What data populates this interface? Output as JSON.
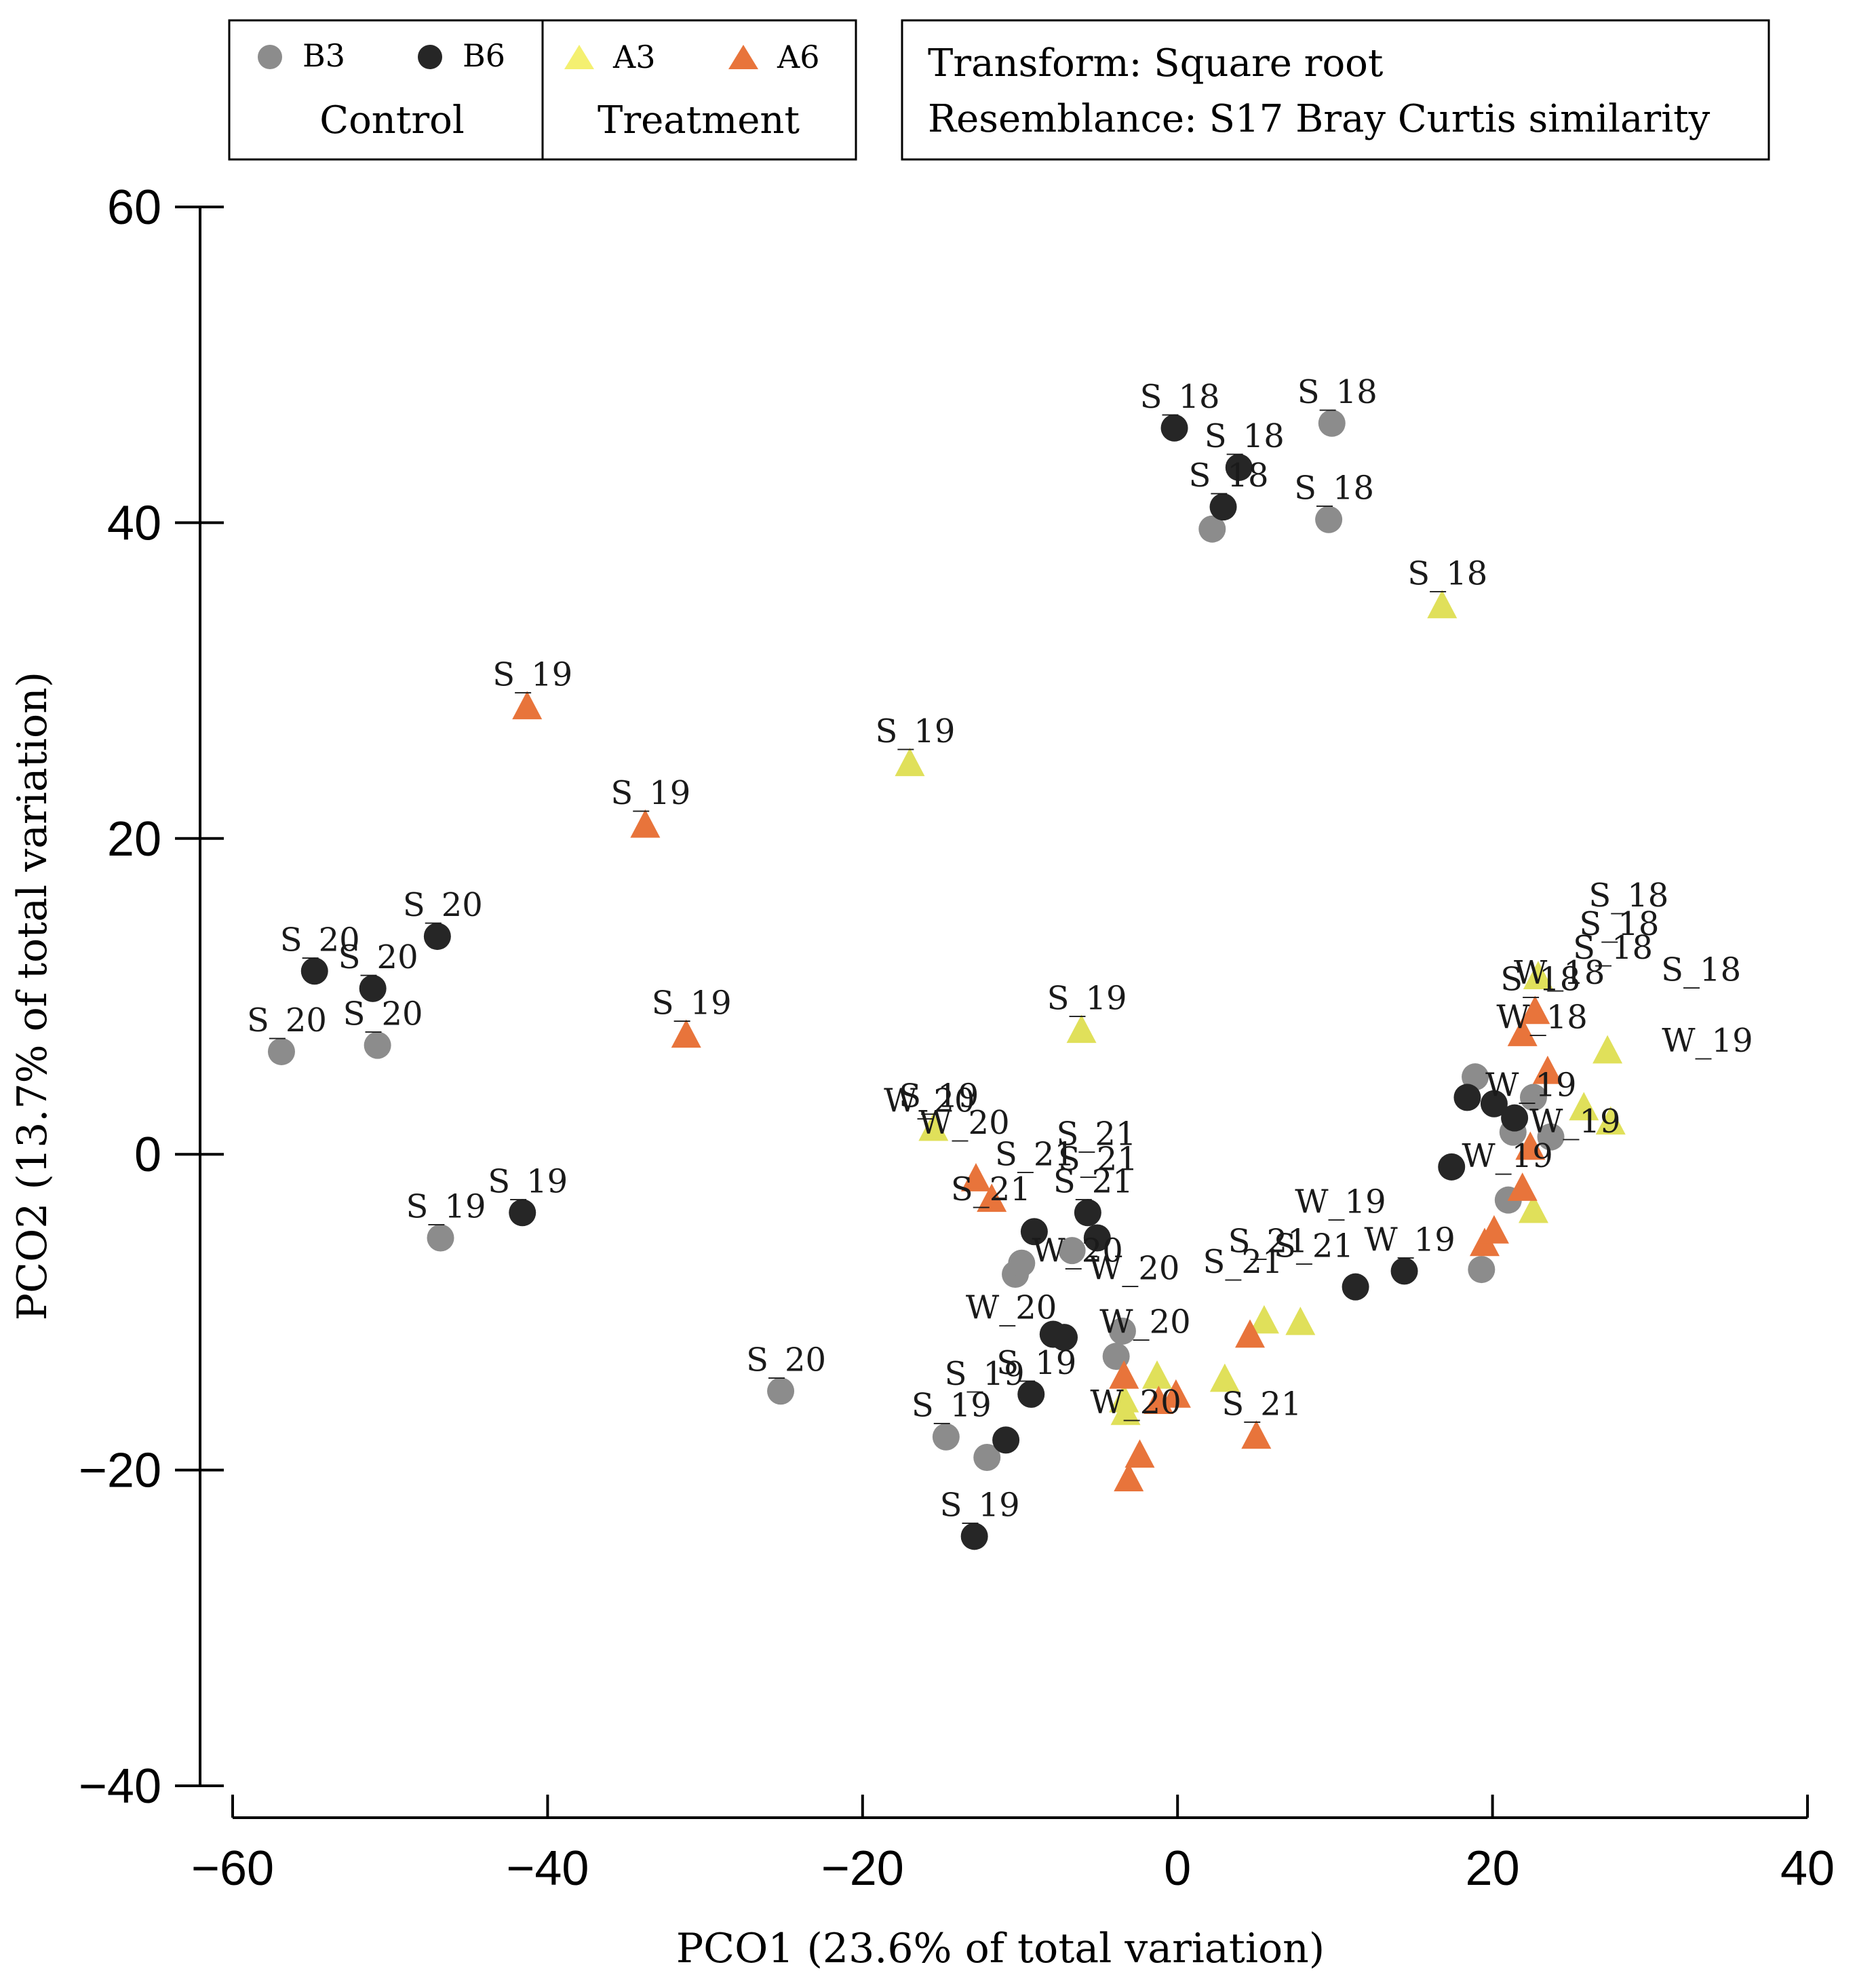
{
  "chart_data": {
    "type": "scatter",
    "xlabel": "PCO1 (23.6% of total variation)",
    "ylabel": "PCO2 (13.7% of total variation)",
    "xlim": [
      -60,
      40
    ],
    "ylim": [
      -40,
      60
    ],
    "xticks": [
      -60,
      -40,
      -20,
      0,
      20,
      40
    ],
    "yticks": [
      -40,
      -20,
      0,
      20,
      40,
      60
    ],
    "tick_labels_x": [
      "−60",
      "−40",
      "−20",
      "0",
      "20",
      "40"
    ],
    "tick_labels_y": [
      "−40",
      "−20",
      "0",
      "20",
      "40",
      "60"
    ],
    "info_box": {
      "transform": "Transform: Square root",
      "resemblance": "Resemblance: S17 Bray Curtis similarity"
    },
    "legend": {
      "placement": "top-left",
      "groups": [
        {
          "group": "Control",
          "entries": [
            "B3",
            "B6"
          ]
        },
        {
          "group": "Treatment",
          "entries": [
            "A3",
            "A6"
          ]
        }
      ]
    },
    "series": [
      {
        "name": "B3",
        "group": "Control",
        "marker": "circle",
        "color": "#8c8c8c",
        "points": [
          {
            "x": 9.8,
            "y": 46.3,
            "label": "S_18"
          },
          {
            "x": 9.6,
            "y": 40.2,
            "label": "S_18"
          },
          {
            "x": 2.2,
            "y": 39.6,
            "label": ""
          },
          {
            "x": -56.9,
            "y": 6.5,
            "label": "S_20"
          },
          {
            "x": -50.8,
            "y": 6.9,
            "label": "S_20"
          },
          {
            "x": -46.8,
            "y": -5.3,
            "label": "S_19"
          },
          {
            "x": -25.2,
            "y": -15.0,
            "label": "S_20"
          },
          {
            "x": -14.7,
            "y": -17.9,
            "label": "S_19"
          },
          {
            "x": -12.1,
            "y": -19.2,
            "label": ""
          },
          {
            "x": -10.3,
            "y": -7.6,
            "label": ""
          },
          {
            "x": -9.9,
            "y": -6.9,
            "label": ""
          },
          {
            "x": -6.7,
            "y": -6.1,
            "label": ""
          },
          {
            "x": -3.9,
            "y": -12.8,
            "label": ""
          },
          {
            "x": -3.5,
            "y": -11.2,
            "label": ""
          },
          {
            "x": 19.3,
            "y": -7.3,
            "label": ""
          },
          {
            "x": 21.0,
            "y": -2.9,
            "label": ""
          },
          {
            "x": 21.3,
            "y": 1.4,
            "label": ""
          },
          {
            "x": 23.7,
            "y": 1.1,
            "label": ""
          },
          {
            "x": 22.6,
            "y": 3.6,
            "label": ""
          },
          {
            "x": 18.9,
            "y": 4.9,
            "label": ""
          }
        ]
      },
      {
        "name": "B6",
        "group": "Control",
        "marker": "circle",
        "color": "#262626",
        "points": [
          {
            "x": -0.2,
            "y": 46.0,
            "label": "S_18"
          },
          {
            "x": 3.9,
            "y": 43.5,
            "label": "S_18"
          },
          {
            "x": 2.9,
            "y": 41.0,
            "label": "S_18"
          },
          {
            "x": -54.8,
            "y": 11.6,
            "label": "S_20"
          },
          {
            "x": -51.1,
            "y": 10.5,
            "label": "S_20"
          },
          {
            "x": -47.0,
            "y": 13.8,
            "label": "S_20"
          },
          {
            "x": -41.6,
            "y": -3.7,
            "label": "S_19"
          },
          {
            "x": -12.9,
            "y": -24.2,
            "label": "S_19"
          },
          {
            "x": -10.9,
            "y": -18.1,
            "label": ""
          },
          {
            "x": -9.3,
            "y": -15.2,
            "label": "S_19"
          },
          {
            "x": -9.1,
            "y": -4.9,
            "label": ""
          },
          {
            "x": -5.7,
            "y": -3.7,
            "label": "S_21"
          },
          {
            "x": -5.1,
            "y": -5.3,
            "label": ""
          },
          {
            "x": -7.9,
            "y": -11.4,
            "label": ""
          },
          {
            "x": -7.2,
            "y": -11.6,
            "label": ""
          },
          {
            "x": 11.3,
            "y": -8.4,
            "label": ""
          },
          {
            "x": 14.4,
            "y": -7.4,
            "label": "W_19"
          },
          {
            "x": 17.4,
            "y": -0.8,
            "label": ""
          },
          {
            "x": 18.4,
            "y": 3.6,
            "label": ""
          },
          {
            "x": 20.1,
            "y": 3.2,
            "label": ""
          },
          {
            "x": 21.4,
            "y": 2.3,
            "label": ""
          }
        ]
      },
      {
        "name": "A3",
        "group": "Treatment",
        "marker": "triangle",
        "color": "#e0e05a",
        "points": [
          {
            "x": 16.8,
            "y": 34.8,
            "label": "S_18"
          },
          {
            "x": -17.0,
            "y": 24.8,
            "label": "S_19"
          },
          {
            "x": -6.1,
            "y": 7.9,
            "label": "S_19"
          },
          {
            "x": -15.5,
            "y": 1.7,
            "label": "S_19"
          },
          {
            "x": -3.4,
            "y": -15.5,
            "label": ""
          },
          {
            "x": -3.3,
            "y": -16.3,
            "label": ""
          },
          {
            "x": -1.3,
            "y": -14.0,
            "label": ""
          },
          {
            "x": 3.0,
            "y": -14.2,
            "label": ""
          },
          {
            "x": 5.5,
            "y": -10.5,
            "label": ""
          },
          {
            "x": 7.8,
            "y": -10.6,
            "label": ""
          },
          {
            "x": 22.6,
            "y": -3.5,
            "label": ""
          },
          {
            "x": 25.8,
            "y": 3.0,
            "label": ""
          },
          {
            "x": 27.5,
            "y": 2.1,
            "label": ""
          },
          {
            "x": 27.3,
            "y": 6.6,
            "label": ""
          },
          {
            "x": 22.9,
            "y": 11.3,
            "label": ""
          }
        ]
      },
      {
        "name": "A6",
        "group": "Treatment",
        "marker": "triangle",
        "color": "#e8743b",
        "points": [
          {
            "x": -41.3,
            "y": 28.4,
            "label": "S_19"
          },
          {
            "x": -33.8,
            "y": 20.9,
            "label": "S_19"
          },
          {
            "x": -31.2,
            "y": 7.6,
            "label": "S_19"
          },
          {
            "x": -12.8,
            "y": -1.5,
            "label": ""
          },
          {
            "x": -11.8,
            "y": -2.8,
            "label": ""
          },
          {
            "x": -3.4,
            "y": -14.0,
            "label": ""
          },
          {
            "x": -1.2,
            "y": -15.6,
            "label": ""
          },
          {
            "x": -0.1,
            "y": -15.2,
            "label": ""
          },
          {
            "x": -2.4,
            "y": -19.0,
            "label": ""
          },
          {
            "x": -3.1,
            "y": -20.5,
            "label": ""
          },
          {
            "x": 5.0,
            "y": -17.8,
            "label": "S_21"
          },
          {
            "x": 4.6,
            "y": -11.4,
            "label": ""
          },
          {
            "x": 19.5,
            "y": -5.6,
            "label": ""
          },
          {
            "x": 20.1,
            "y": -4.8,
            "label": ""
          },
          {
            "x": 21.9,
            "y": -2.1,
            "label": ""
          },
          {
            "x": 22.7,
            "y": 9.1,
            "label": "S_18"
          },
          {
            "x": 21.9,
            "y": 7.7,
            "label": ""
          },
          {
            "x": 23.5,
            "y": 5.3,
            "label": ""
          },
          {
            "x": 22.4,
            "y": 0.5,
            "label": ""
          }
        ]
      }
    ],
    "annotations": [
      {
        "x": 28.3,
        "y": 14.4,
        "text": "S_18"
      },
      {
        "x": 27.7,
        "y": 12.6,
        "text": "S_18"
      },
      {
        "x": 27.3,
        "y": 11.1,
        "text": "S_18"
      },
      {
        "x": 32.9,
        "y": 9.7,
        "text": "S_18"
      },
      {
        "x": 23.9,
        "y": 9.5,
        "text": "W_18"
      },
      {
        "x": 22.8,
        "y": 6.7,
        "text": "W_18"
      },
      {
        "x": 33.3,
        "y": 5.2,
        "text": "W_19"
      },
      {
        "x": 22.1,
        "y": 2.4,
        "text": "W_19"
      },
      {
        "x": 24.9,
        "y": 0.1,
        "text": "W_19"
      },
      {
        "x": 20.6,
        "y": -2.1,
        "text": "W_19"
      },
      {
        "x": 10.0,
        "y": -5.0,
        "text": "W_19"
      },
      {
        "x": -16.1,
        "y": 1.4,
        "text": "W_20"
      },
      {
        "x": -13.9,
        "y": 0.0,
        "text": "W_20"
      },
      {
        "x": -5.5,
        "y": -0.7,
        "text": "S_21"
      },
      {
        "x": -5.4,
        "y": -2.3,
        "text": "S_21"
      },
      {
        "x": -9.4,
        "y": -2.0,
        "text": "S_21"
      },
      {
        "x": -12.2,
        "y": -4.2,
        "text": "S_21"
      },
      {
        "x": -6.7,
        "y": -8.1,
        "text": "W_20"
      },
      {
        "x": -3.1,
        "y": -9.2,
        "text": "W_20"
      },
      {
        "x": -10.9,
        "y": -11.7,
        "text": "W_20"
      },
      {
        "x": -2.4,
        "y": -12.6,
        "text": "W_20"
      },
      {
        "x": -3.0,
        "y": -17.7,
        "text": "W_20"
      },
      {
        "x": 5.4,
        "y": -7.5,
        "text": "S_21"
      },
      {
        "x": 8.3,
        "y": -7.8,
        "text": "S_21"
      },
      {
        "x": 3.8,
        "y": -8.8,
        "text": "S_21"
      },
      {
        "x": -12.6,
        "y": -15.9,
        "text": "S_19"
      }
    ]
  }
}
